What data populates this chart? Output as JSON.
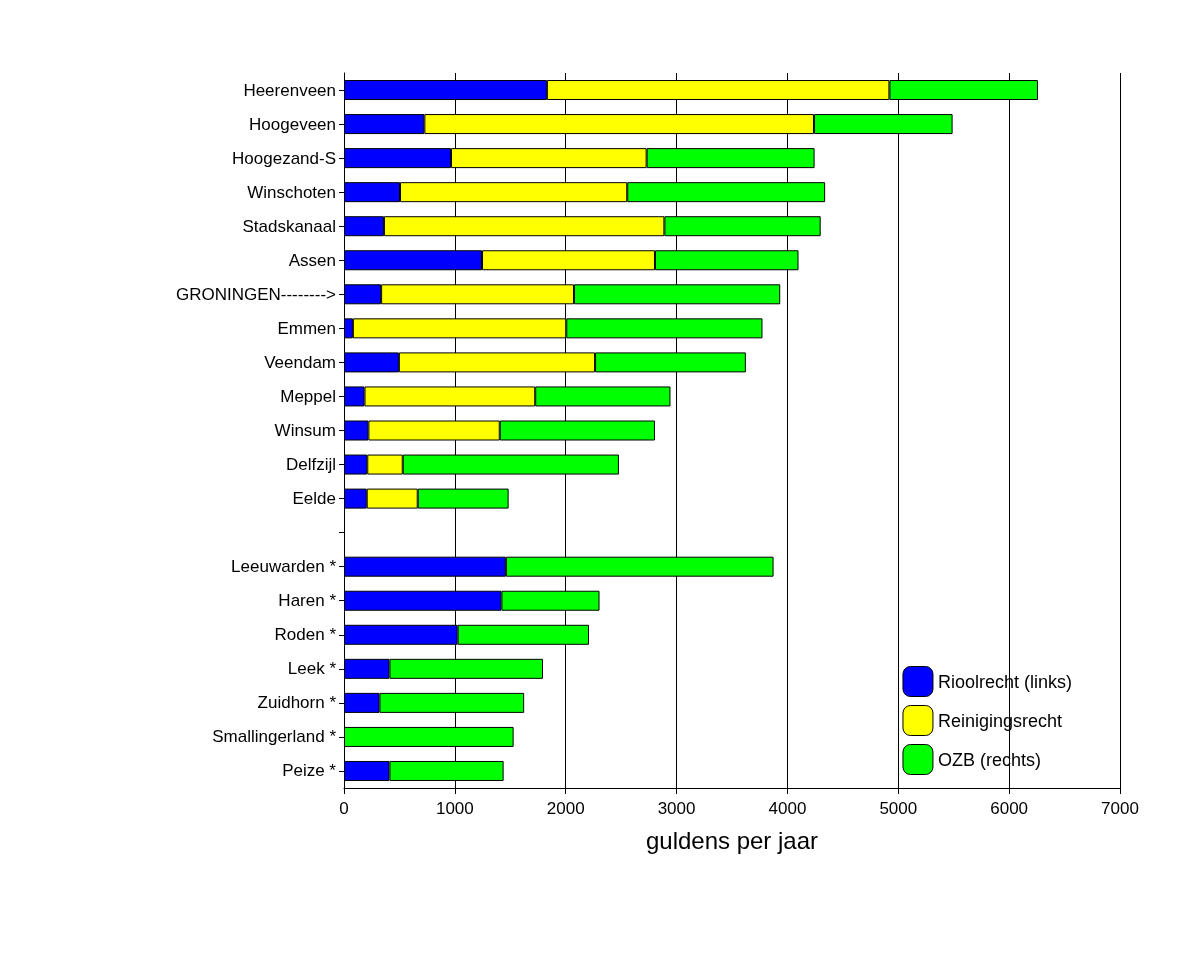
{
  "chart_data": {
    "type": "bar",
    "orientation": "horizontal",
    "stacked": true,
    "xlabel": "guldens per jaar",
    "categories": [
      "Heerenveen",
      "Hoogeveen",
      "Hoogezand-S",
      "Winschoten",
      "Stadskanaal",
      "Assen",
      "GRONINGEN-------->",
      "Emmen",
      "Veendam",
      "Meppel",
      "Winsum",
      "Delfzijl",
      "Eelde",
      null,
      "Leeuwarden *",
      "Haren *",
      "Roden *",
      "Leek *",
      "Zuidhorn *",
      "Smallingerland *",
      "Peize *"
    ],
    "series": [
      {
        "name": "Rioolrecht (links)",
        "color": "#0000ff",
        "values": [
          1830,
          725,
          965,
          505,
          360,
          1245,
          335,
          80,
          495,
          185,
          220,
          210,
          205,
          null,
          1460,
          1420,
          1025,
          410,
          320,
          null,
          410
        ]
      },
      {
        "name": "Reinigingsrecht",
        "color": "#ffff00",
        "values": [
          3090,
          3515,
          1765,
          2050,
          2530,
          1560,
          1740,
          1925,
          1770,
          1540,
          1185,
          320,
          460,
          null,
          null,
          null,
          null,
          null,
          null,
          null,
          null
        ]
      },
      {
        "name": "OZB (rechts)",
        "color": "#00ff00",
        "values": [
          1340,
          1250,
          1515,
          1785,
          1410,
          1295,
          1860,
          1770,
          1360,
          1220,
          1400,
          1950,
          820,
          null,
          2415,
          885,
          1185,
          1385,
          1305,
          1530,
          1030
        ]
      }
    ],
    "xlim": [
      0,
      7000
    ],
    "xticks": [
      0,
      1000,
      2000,
      3000,
      4000,
      5000,
      6000,
      7000
    ],
    "grid": "x",
    "legend": "bottom right"
  }
}
